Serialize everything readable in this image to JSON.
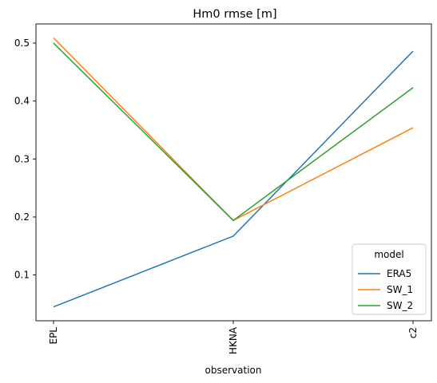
{
  "chart_data": {
    "type": "line",
    "title": "Hm0 rmse [m]",
    "xlabel": "observation",
    "ylabel": "",
    "categories": [
      "EPL",
      "HKNA",
      "c2"
    ],
    "yticks": [
      0.1,
      0.2,
      0.3,
      0.4,
      0.5
    ],
    "ytick_labels": [
      "0.1",
      "0.2",
      "0.3",
      "0.4",
      "0.5"
    ],
    "ylim": [
      0.021,
      0.533
    ],
    "grid": false,
    "legend": {
      "title": "model",
      "placement": "lower-right"
    },
    "series": [
      {
        "name": "ERA5",
        "color": "#1f77b4",
        "values": [
          0.045,
          0.167,
          0.486
        ]
      },
      {
        "name": "SW_1",
        "color": "#ff7f0e",
        "values": [
          0.509,
          0.194,
          0.354
        ]
      },
      {
        "name": "SW_2",
        "color": "#2ca02c",
        "values": [
          0.5,
          0.194,
          0.423
        ]
      }
    ]
  }
}
